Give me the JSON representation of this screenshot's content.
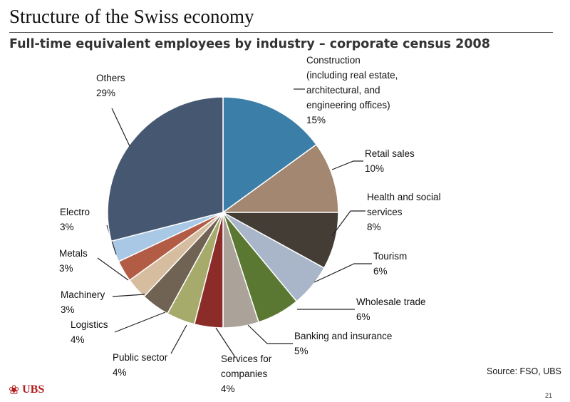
{
  "header": {
    "title": "Structure of the Swiss economy",
    "subtitle": "Full-time equivalent employees by industry – corporate census 2008"
  },
  "chart_data": {
    "type": "pie",
    "title": "Full-time equivalent employees by industry – corporate census 2008",
    "unit": "%",
    "start_angle_deg": 0,
    "direction": "clockwise",
    "slices": [
      {
        "label": [
          "Construction",
          "(including real estate,",
          "architectural, and",
          "engineering offices)"
        ],
        "value": 15,
        "value_label": "15%",
        "color": "#3b7ea8"
      },
      {
        "label": [
          "Retail sales"
        ],
        "value": 10,
        "value_label": "10%",
        "color": "#a38770"
      },
      {
        "label": [
          "Health and social",
          "services"
        ],
        "value": 8,
        "value_label": "8%",
        "color": "#433d35"
      },
      {
        "label": [
          "Tourism"
        ],
        "value": 6,
        "value_label": "6%",
        "color": "#a9b5c8"
      },
      {
        "label": [
          "Wholesale trade"
        ],
        "value": 6,
        "value_label": "6%",
        "color": "#5b7832"
      },
      {
        "label": [
          "Banking and insurance"
        ],
        "value": 5,
        "value_label": "5%",
        "color": "#aba39a"
      },
      {
        "label": [
          "Services for",
          "companies"
        ],
        "value": 4,
        "value_label": "4%",
        "color": "#8c2c28"
      },
      {
        "label": [
          "Public sector"
        ],
        "value": 4,
        "value_label": "4%",
        "color": "#a6aa6a"
      },
      {
        "label": [
          "Logistics"
        ],
        "value": 4,
        "value_label": "4%",
        "color": "#706354"
      },
      {
        "label": [
          "Machinery"
        ],
        "value": 3,
        "value_label": "3%",
        "color": "#d6bd9f"
      },
      {
        "label": [
          "Metals"
        ],
        "value": 3,
        "value_label": "3%",
        "color": "#b25c46"
      },
      {
        "label": [
          "Electro"
        ],
        "value": 3,
        "value_label": "3%",
        "color": "#a8c8e6"
      },
      {
        "label": [
          "Others"
        ],
        "value": 29,
        "value_label": "29%",
        "color": "#465871"
      }
    ]
  },
  "footer": {
    "source": "Source: FSO, UBS",
    "brand": "UBS",
    "page_number": "21"
  }
}
